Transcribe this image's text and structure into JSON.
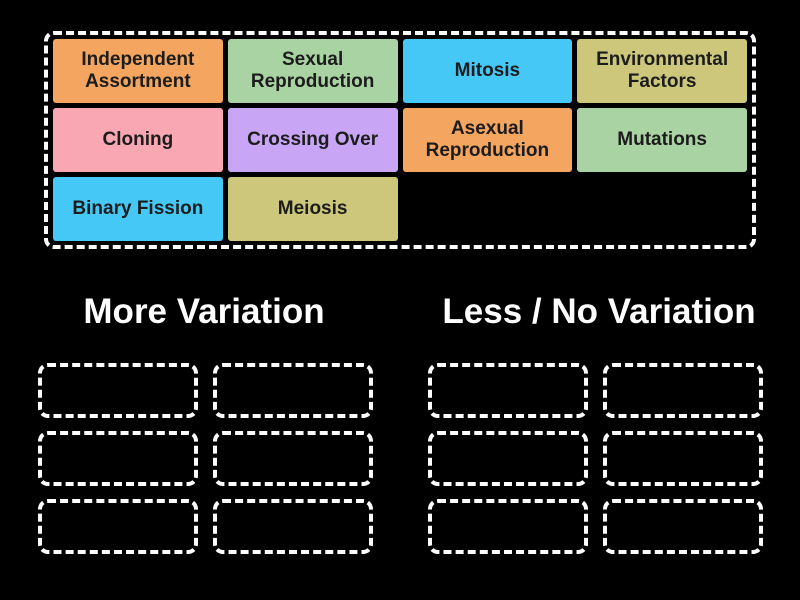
{
  "palette": {
    "background": "#000000",
    "tile_text": "#1C1C1C",
    "title_text": "#FFFFFF",
    "slot_border": "#FFFFFF",
    "orange": "#F4A55F",
    "green": "#A9D3A2",
    "blue": "#45C8F5",
    "khaki": "#CDC77B",
    "pink": "#F9A7B2",
    "purple": "#C8A5F5"
  },
  "pool": {
    "tiles": [
      {
        "label": "Independent Assortment",
        "color": "orange"
      },
      {
        "label": "Sexual Reproduction",
        "color": "green"
      },
      {
        "label": "Mitosis",
        "color": "blue"
      },
      {
        "label": "Environmental Factors",
        "color": "khaki"
      },
      {
        "label": "Cloning",
        "color": "pink"
      },
      {
        "label": "Crossing Over",
        "color": "purple"
      },
      {
        "label": "Asexual Reproduction",
        "color": "orange"
      },
      {
        "label": "Mutations",
        "color": "green"
      },
      {
        "label": "Binary Fission",
        "color": "blue"
      },
      {
        "label": "Meiosis",
        "color": "khaki"
      }
    ]
  },
  "groups": [
    {
      "title": "More Variation",
      "empty_slots": 6
    },
    {
      "title": "Less / No Variation",
      "empty_slots": 6
    }
  ]
}
